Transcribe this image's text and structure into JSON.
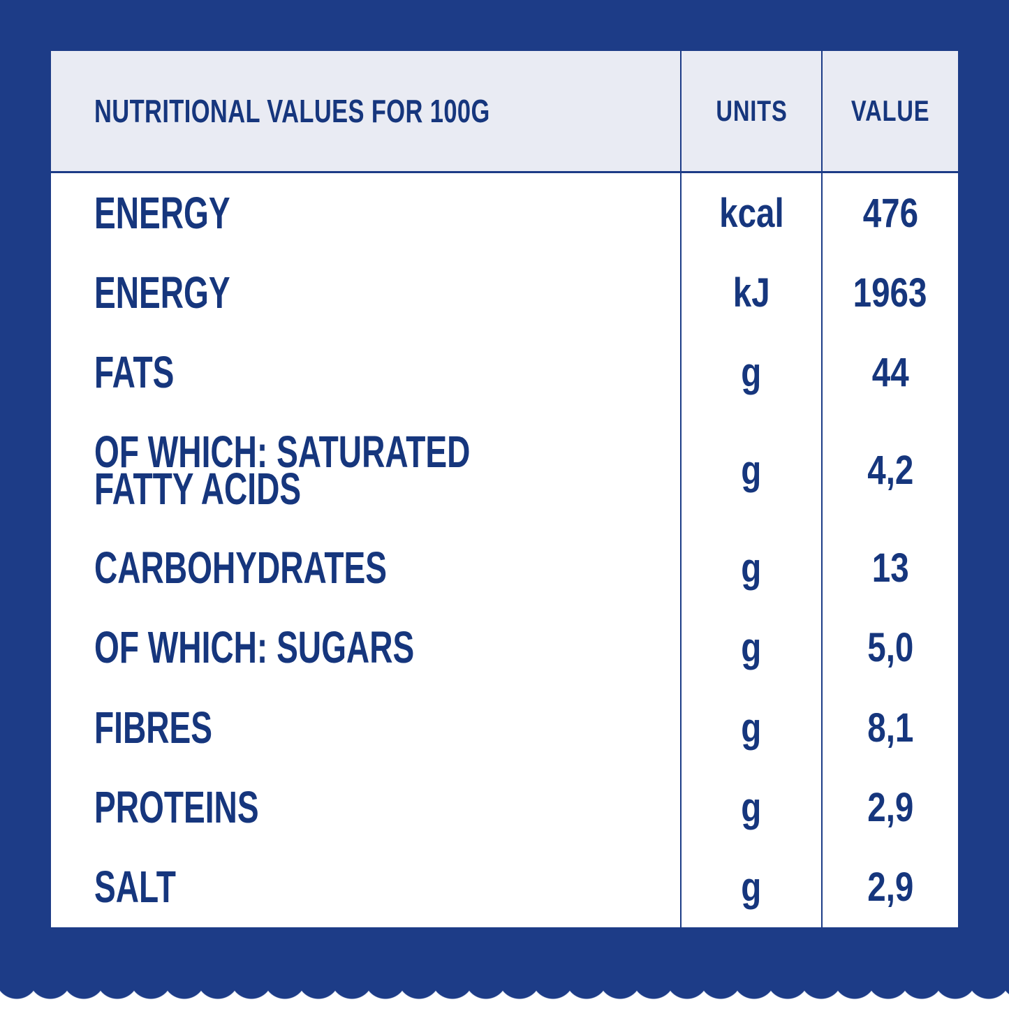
{
  "table": {
    "title": "NUTRITIONAL VALUES FOR 100G",
    "columns": {
      "units": "UNITS",
      "value": "VALUE"
    },
    "rows": [
      {
        "label": "ENERGY",
        "unit": "kcal",
        "value": "476"
      },
      {
        "label": "ENERGY",
        "unit": "kJ",
        "value": "1963"
      },
      {
        "label": "FATS",
        "unit": "g",
        "value": "44"
      },
      {
        "label": "OF WHICH: SATURATED FATTY ACIDS",
        "unit": "g",
        "value": "4,2"
      },
      {
        "label": "CARBOHYDRATES",
        "unit": "g",
        "value": "13"
      },
      {
        "label": "OF WHICH: SUGARS",
        "unit": "g",
        "value": "5,0"
      },
      {
        "label": "FIBRES",
        "unit": "g",
        "value": "8,1"
      },
      {
        "label": "PROTEINS",
        "unit": "g",
        "value": "2,9"
      },
      {
        "label": "SALT",
        "unit": "g",
        "value": "2,9"
      }
    ]
  },
  "colors": {
    "background_navy": "#1d3c87",
    "text_navy": "#16367d",
    "header_band": "#e9ebf3",
    "card_white": "#ffffff"
  }
}
